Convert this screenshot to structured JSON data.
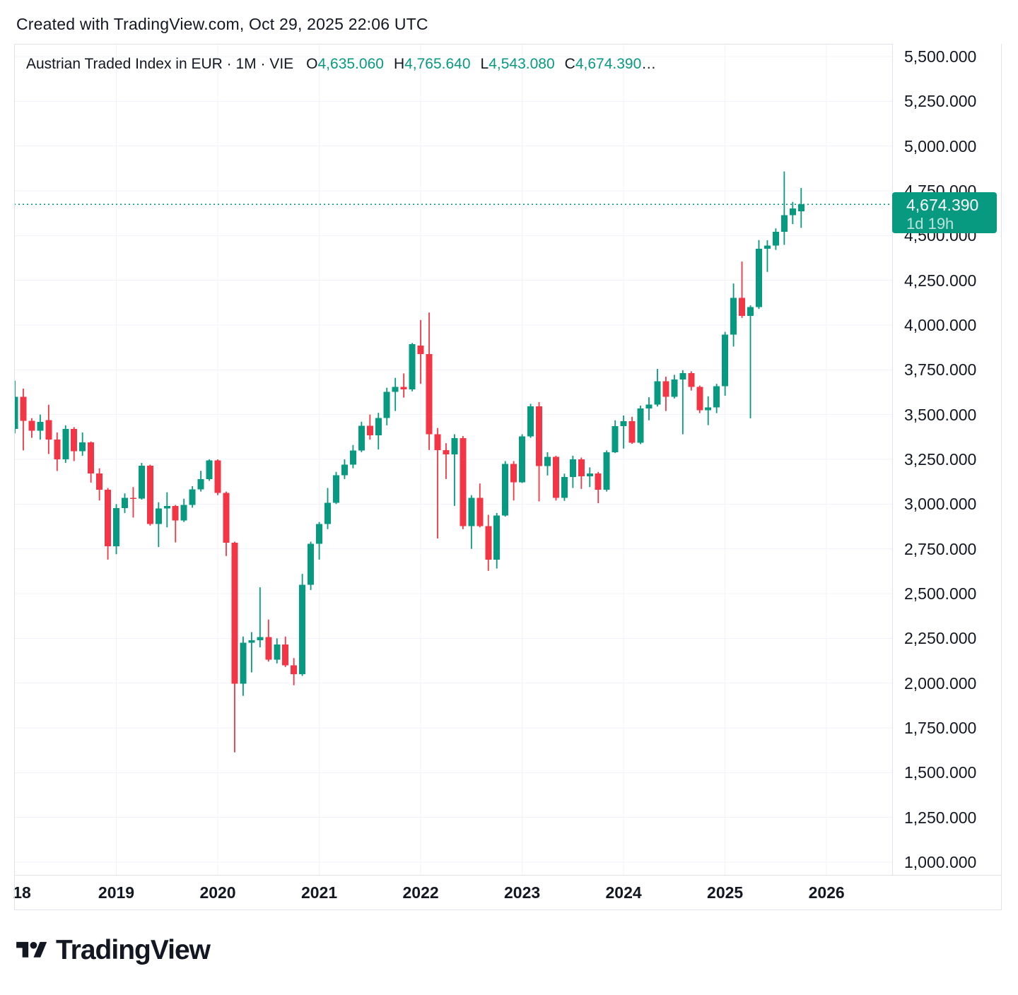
{
  "watermark": "Created with TradingView.com, Oct 29, 2025 22:06 UTC",
  "legend": {
    "title": "Austrian Traded Index in EUR · 1M · VIE",
    "open_label": "O",
    "open": "4,635.060",
    "high_label": "H",
    "high": "4,765.640",
    "low_label": "L",
    "low": "4,543.080",
    "close_label": "C",
    "close": "4,674.390",
    "ellipsis": "…"
  },
  "price_badge": {
    "price": "4,674.390",
    "countdown": "1d 19h"
  },
  "logo": {
    "brand": "TradingView"
  },
  "colors": {
    "up": "#089981",
    "down": "#F23645",
    "badge_bg": "#089981",
    "text": "#131722",
    "grid": "#f0f3fa",
    "border": "#e0e3eb"
  },
  "chart_data": {
    "type": "candlestick",
    "title": "Austrian Traded Index in EUR",
    "interval": "1M",
    "exchange": "VIE",
    "current_price": 4674.39,
    "last_candle": {
      "open": 4635.06,
      "high": 4765.64,
      "low": 4543.08,
      "close": 4674.39
    },
    "y_axis": {
      "min": 1000,
      "max": 5500,
      "step": 250,
      "grid": true,
      "position": "right"
    },
    "y_ticks": [
      {
        "v": 5500,
        "label": "5,500.000"
      },
      {
        "v": 5250,
        "label": "5,250.000"
      },
      {
        "v": 5000,
        "label": "5,000.000"
      },
      {
        "v": 4750,
        "label": "4,750.000"
      },
      {
        "v": 4500,
        "label": "4,500.000"
      },
      {
        "v": 4250,
        "label": "4,250.000"
      },
      {
        "v": 4000,
        "label": "4,000.000"
      },
      {
        "v": 3750,
        "label": "3,750.000"
      },
      {
        "v": 3500,
        "label": "3,500.000"
      },
      {
        "v": 3250,
        "label": "3,250.000"
      },
      {
        "v": 3000,
        "label": "3,000.000"
      },
      {
        "v": 2750,
        "label": "2,750.000"
      },
      {
        "v": 2500,
        "label": "2,500.000"
      },
      {
        "v": 2250,
        "label": "2,250.000"
      },
      {
        "v": 2000,
        "label": "2,000.000"
      },
      {
        "v": 1750,
        "label": "1,750.000"
      },
      {
        "v": 1500,
        "label": "1,500.000"
      },
      {
        "v": 1250,
        "label": "1,250.000"
      },
      {
        "v": 1000,
        "label": "1,000.000"
      }
    ],
    "x_ticks": [
      {
        "i": 0,
        "label": "18",
        "dx": 10
      },
      {
        "i": 12,
        "label": "2019"
      },
      {
        "i": 24,
        "label": "2020"
      },
      {
        "i": 36,
        "label": "2021"
      },
      {
        "i": 48,
        "label": "2022"
      },
      {
        "i": 60,
        "label": "2023"
      },
      {
        "i": 72,
        "label": "2024"
      },
      {
        "i": 84,
        "label": "2025"
      },
      {
        "i": 96,
        "label": "2026"
      }
    ],
    "columns": [
      "month",
      "open",
      "high",
      "low",
      "close"
    ],
    "candles": [
      [
        "2018-01",
        3420,
        3690,
        3395,
        3600
      ],
      [
        "2018-02",
        3600,
        3645,
        3300,
        3465
      ],
      [
        "2018-03",
        3465,
        3480,
        3370,
        3410
      ],
      [
        "2018-04",
        3410,
        3500,
        3360,
        3460
      ],
      [
        "2018-05",
        3470,
        3555,
        3280,
        3360
      ],
      [
        "2018-06",
        3360,
        3400,
        3185,
        3250
      ],
      [
        "2018-07",
        3250,
        3440,
        3230,
        3420
      ],
      [
        "2018-08",
        3420,
        3430,
        3240,
        3295
      ],
      [
        "2018-09",
        3295,
        3400,
        3270,
        3345
      ],
      [
        "2018-10",
        3345,
        3350,
        3120,
        3172
      ],
      [
        "2018-11",
        3172,
        3200,
        3020,
        3080
      ],
      [
        "2018-12",
        3080,
        3090,
        2690,
        2765
      ],
      [
        "2019-01",
        2765,
        3000,
        2720,
        2978
      ],
      [
        "2019-02",
        2978,
        3060,
        2950,
        3035
      ],
      [
        "2019-03",
        3035,
        3095,
        2925,
        3030
      ],
      [
        "2019-04",
        3030,
        3230,
        3025,
        3215
      ],
      [
        "2019-05",
        3215,
        3220,
        2880,
        2888
      ],
      [
        "2019-06",
        2888,
        3010,
        2760,
        2975
      ],
      [
        "2019-07",
        2975,
        3066,
        2870,
        2990
      ],
      [
        "2019-08",
        2990,
        2995,
        2786,
        2909
      ],
      [
        "2019-09",
        2909,
        3030,
        2900,
        2995
      ],
      [
        "2019-10",
        2995,
        3100,
        2980,
        3082
      ],
      [
        "2019-11",
        3082,
        3186,
        3070,
        3140
      ],
      [
        "2019-12",
        3140,
        3250,
        3130,
        3244
      ],
      [
        "2020-01",
        3244,
        3250,
        3050,
        3062
      ],
      [
        "2020-02",
        3062,
        3070,
        2710,
        2785
      ],
      [
        "2020-03",
        2785,
        2790,
        1613,
        1996
      ],
      [
        "2020-04",
        1996,
        2260,
        1929,
        2225
      ],
      [
        "2020-05",
        2225,
        2285,
        2060,
        2240
      ],
      [
        "2020-06",
        2240,
        2535,
        2200,
        2257
      ],
      [
        "2020-07",
        2257,
        2355,
        2120,
        2130
      ],
      [
        "2020-08",
        2130,
        2250,
        2110,
        2215
      ],
      [
        "2020-09",
        2215,
        2260,
        2090,
        2100
      ],
      [
        "2020-10",
        2100,
        2140,
        1988,
        2050
      ],
      [
        "2020-11",
        2050,
        2610,
        2040,
        2549
      ],
      [
        "2020-12",
        2549,
        2790,
        2520,
        2778
      ],
      [
        "2021-01",
        2778,
        2900,
        2690,
        2888
      ],
      [
        "2021-02",
        2888,
        3090,
        2860,
        3007
      ],
      [
        "2021-03",
        3007,
        3180,
        3000,
        3161
      ],
      [
        "2021-04",
        3161,
        3250,
        3140,
        3220
      ],
      [
        "2021-05",
        3220,
        3330,
        3200,
        3299
      ],
      [
        "2021-06",
        3299,
        3460,
        3290,
        3437
      ],
      [
        "2021-07",
        3437,
        3500,
        3360,
        3385
      ],
      [
        "2021-08",
        3385,
        3510,
        3305,
        3481
      ],
      [
        "2021-09",
        3481,
        3650,
        3440,
        3627
      ],
      [
        "2021-10",
        3627,
        3705,
        3520,
        3655
      ],
      [
        "2021-11",
        3655,
        3730,
        3595,
        3640
      ],
      [
        "2021-12",
        3640,
        3900,
        3630,
        3894
      ],
      [
        "2022-01",
        3886,
        4028,
        3672,
        3838
      ],
      [
        "2022-02",
        3838,
        4070,
        3302,
        3390
      ],
      [
        "2022-03",
        3390,
        3425,
        2808,
        3302
      ],
      [
        "2022-04",
        3302,
        3340,
        3140,
        3278
      ],
      [
        "2022-05",
        3278,
        3390,
        2990,
        3369
      ],
      [
        "2022-06",
        3369,
        3380,
        2860,
        2876
      ],
      [
        "2022-07",
        2876,
        3050,
        2750,
        3034
      ],
      [
        "2022-08",
        3034,
        3115,
        2870,
        2876
      ],
      [
        "2022-09",
        2876,
        2940,
        2627,
        2690
      ],
      [
        "2022-10",
        2690,
        2950,
        2640,
        2936
      ],
      [
        "2022-11",
        2936,
        3240,
        2930,
        3224
      ],
      [
        "2022-12",
        3224,
        3240,
        3020,
        3121
      ],
      [
        "2023-01",
        3121,
        3390,
        3118,
        3378
      ],
      [
        "2023-02",
        3378,
        3560,
        3370,
        3547
      ],
      [
        "2023-03",
        3547,
        3570,
        3015,
        3212
      ],
      [
        "2023-04",
        3212,
        3290,
        3160,
        3263
      ],
      [
        "2023-05",
        3263,
        3270,
        3020,
        3035
      ],
      [
        "2023-06",
        3035,
        3170,
        3018,
        3151
      ],
      [
        "2023-07",
        3151,
        3270,
        3090,
        3250
      ],
      [
        "2023-08",
        3250,
        3260,
        3085,
        3155
      ],
      [
        "2023-09",
        3155,
        3205,
        3095,
        3172
      ],
      [
        "2023-10",
        3172,
        3180,
        3005,
        3080
      ],
      [
        "2023-11",
        3080,
        3300,
        3070,
        3290
      ],
      [
        "2023-12",
        3290,
        3468,
        3285,
        3435
      ],
      [
        "2024-01",
        3435,
        3495,
        3310,
        3464
      ],
      [
        "2024-02",
        3464,
        3488,
        3337,
        3343
      ],
      [
        "2024-03",
        3343,
        3550,
        3335,
        3534
      ],
      [
        "2024-04",
        3534,
        3597,
        3468,
        3555
      ],
      [
        "2024-05",
        3555,
        3755,
        3545,
        3686
      ],
      [
        "2024-06",
        3686,
        3712,
        3520,
        3600
      ],
      [
        "2024-07",
        3600,
        3722,
        3590,
        3697
      ],
      [
        "2024-08",
        3697,
        3748,
        3390,
        3732
      ],
      [
        "2024-09",
        3732,
        3742,
        3634,
        3655
      ],
      [
        "2024-10",
        3655,
        3662,
        3508,
        3525
      ],
      [
        "2024-11",
        3525,
        3602,
        3441,
        3541
      ],
      [
        "2024-12",
        3541,
        3672,
        3508,
        3658
      ],
      [
        "2025-01",
        3658,
        3962,
        3605,
        3946
      ],
      [
        "2025-02",
        3946,
        4232,
        3880,
        4151
      ],
      [
        "2025-03",
        4151,
        4355,
        4040,
        4052
      ],
      [
        "2025-04",
        4052,
        4110,
        3479,
        4100
      ],
      [
        "2025-05",
        4100,
        4475,
        4090,
        4427
      ],
      [
        "2025-06",
        4427,
        4474,
        4297,
        4445
      ],
      [
        "2025-07",
        4445,
        4540,
        4420,
        4522
      ],
      [
        "2025-08",
        4522,
        4858,
        4448,
        4613
      ],
      [
        "2025-09",
        4613,
        4688,
        4564,
        4652
      ],
      [
        "2025-10",
        4635.06,
        4765.64,
        4543.08,
        4674.39
      ]
    ]
  }
}
